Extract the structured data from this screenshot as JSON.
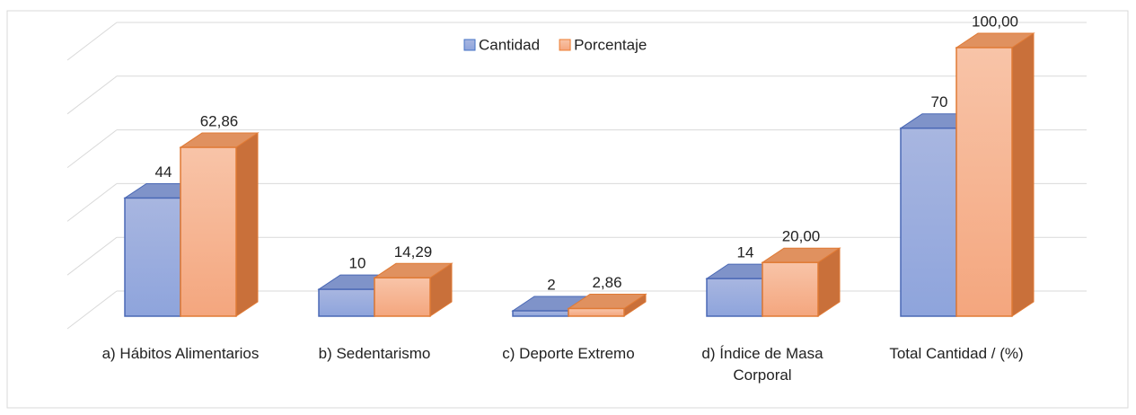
{
  "chart_data": {
    "type": "bar3d",
    "categories": [
      "a) Hábitos Alimentarios",
      "b) Sedentarismo",
      "c) Deporte Extremo",
      "d) Índice de Masa Corporal",
      "Total Cantidad / (%)"
    ],
    "series": [
      {
        "name": "Cantidad",
        "color": "#4472c4",
        "values": [
          44,
          10,
          2,
          14,
          70
        ]
      },
      {
        "name": "Porcentaje",
        "color": "#ed7d31",
        "values": [
          62.86,
          14.29,
          2.86,
          20.0,
          100.0
        ],
        "value_labels": [
          "62,86",
          "14,29",
          "2,86",
          "20,00",
          "100,00"
        ]
      }
    ],
    "ylim": [
      0,
      100
    ],
    "yticks": [
      0,
      20,
      40,
      60,
      80,
      100
    ],
    "grid": true,
    "legend": "top"
  }
}
